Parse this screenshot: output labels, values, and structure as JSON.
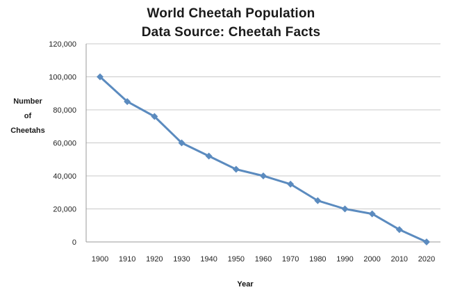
{
  "chart_data": {
    "type": "line",
    "title": [
      "World Cheetah Population",
      "Data Source: Cheetah Facts"
    ],
    "xlabel": "Year",
    "ylabel": [
      "Number",
      "of",
      "Cheetahs"
    ],
    "x": [
      1900,
      1910,
      1920,
      1930,
      1940,
      1950,
      1960,
      1970,
      1980,
      1990,
      2000,
      2010,
      2020
    ],
    "x_tick_labels": [
      "1900",
      "1910",
      "1920",
      "1930",
      "1940",
      "1950",
      "1960",
      "1970",
      "1980",
      "1990",
      "2000",
      "2010",
      "2020"
    ],
    "y_tick_labels": [
      "0",
      "20,000",
      "40,000",
      "60,000",
      "80,000",
      "100,000",
      "120,000"
    ],
    "y_ticks": [
      0,
      20000,
      40000,
      60000,
      80000,
      100000,
      120000
    ],
    "ylim": [
      0,
      120000
    ],
    "grid": "horizontal",
    "legend": "none",
    "series": [
      {
        "values": [
          100000,
          85000,
          76000,
          60000,
          52000,
          44000,
          40000,
          35000,
          25000,
          20000,
          17000,
          7500,
          0
        ],
        "color": "#5b8bbf",
        "marker": "diamond"
      }
    ]
  }
}
